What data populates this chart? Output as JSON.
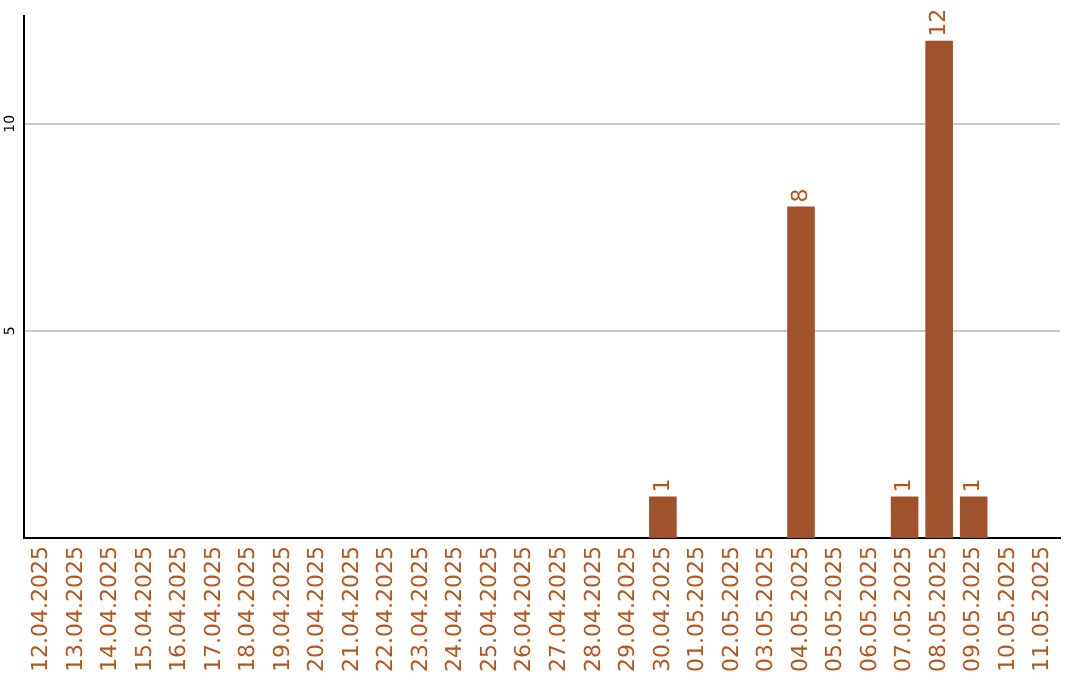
{
  "chart_data": {
    "type": "bar",
    "categories": [
      "12.04.2025",
      "13.04.2025",
      "14.04.2025",
      "15.04.2025",
      "16.04.2025",
      "17.04.2025",
      "18.04.2025",
      "19.04.2025",
      "20.04.2025",
      "21.04.2025",
      "22.04.2025",
      "23.04.2025",
      "24.04.2025",
      "25.04.2025",
      "26.04.2025",
      "27.04.2025",
      "28.04.2025",
      "29.04.2025",
      "30.04.2025",
      "01.05.2025",
      "02.05.2025",
      "03.05.2025",
      "04.05.2025",
      "05.05.2025",
      "06.05.2025",
      "07.05.2025",
      "08.05.2025",
      "09.05.2025",
      "10.05.2025",
      "11.05.2025"
    ],
    "values": [
      0,
      0,
      0,
      0,
      0,
      0,
      0,
      0,
      0,
      0,
      0,
      0,
      0,
      0,
      0,
      0,
      0,
      0,
      1,
      0,
      0,
      0,
      8,
      0,
      0,
      1,
      12,
      1,
      0,
      0
    ],
    "value_labels": [
      null,
      null,
      null,
      null,
      null,
      null,
      null,
      null,
      null,
      null,
      null,
      null,
      null,
      null,
      null,
      null,
      null,
      null,
      "1",
      null,
      null,
      null,
      "8",
      null,
      null,
      "1",
      "12",
      "1",
      null,
      null
    ],
    "color": "#a0522d",
    "ylim": [
      0,
      12.6
    ],
    "yticks": [
      5,
      10
    ],
    "grid": "y",
    "legend": false
  }
}
